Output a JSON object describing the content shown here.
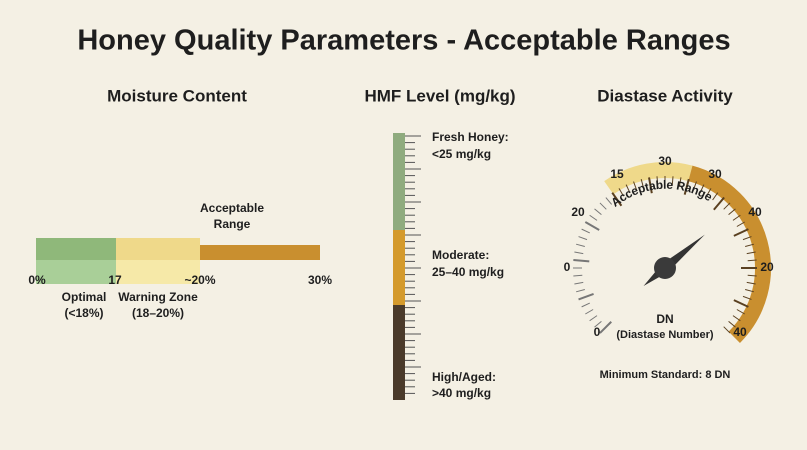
{
  "title": "Honey Quality Parameters - Acceptable Ranges",
  "moisture": {
    "title": "Moisture Content",
    "scale_labels": [
      "0%",
      "17",
      "~20%",
      "30%"
    ],
    "annotation": [
      "Acceptable",
      "Range"
    ],
    "zones": [
      {
        "label": "Optimal",
        "sublabel": "(<18%)"
      },
      {
        "label": "Warning Zone",
        "sublabel": "(18–20%)"
      }
    ]
  },
  "hmf": {
    "title": "HMF Level (mg/kg)",
    "zones": [
      {
        "label": "Fresh Honey:",
        "range": "<25 mg/kg"
      },
      {
        "label": "Moderate:",
        "range": "25–40 mg/kg"
      },
      {
        "label": "High/Aged:",
        "range": ">40 mg/kg"
      }
    ]
  },
  "diastase": {
    "title": "Diastase Activity",
    "scale_labels": [
      "0",
      "0",
      "20",
      "15",
      "30",
      "30",
      "40",
      "20",
      "40"
    ],
    "arc_label": "Acceptable Range",
    "unit": "DN",
    "unit_full": "(Diastase Number)",
    "footnote": "Minimum Standard: 8 DN"
  }
}
